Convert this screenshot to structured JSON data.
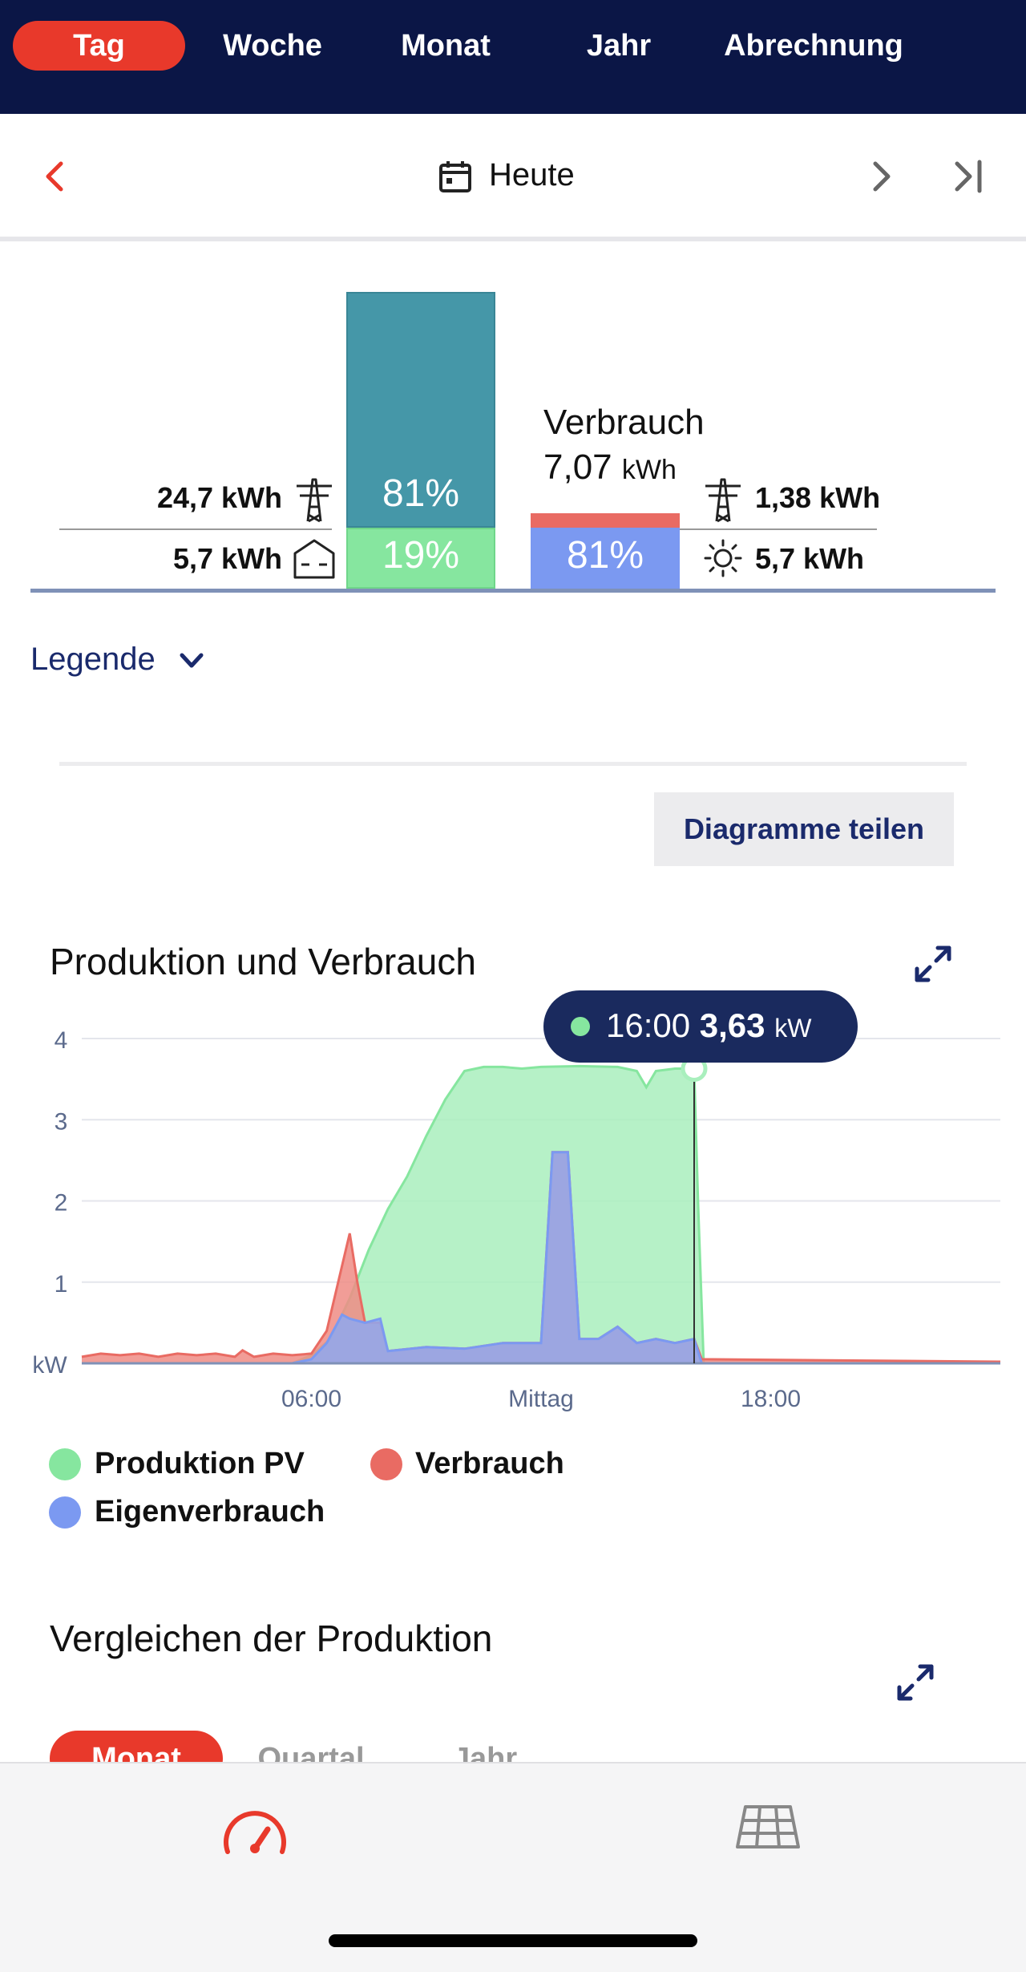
{
  "period_tabs": [
    {
      "label": "Tag",
      "active": true
    },
    {
      "label": "Woche",
      "active": false
    },
    {
      "label": "Monat",
      "active": false
    },
    {
      "label": "Jahr",
      "active": false
    },
    {
      "label": "Abrechnung",
      "active": false
    }
  ],
  "date_nav": {
    "label": "Heute",
    "icons": [
      "chevron-left-icon",
      "calendar-icon",
      "chevron-right-icon",
      "skip-to-end-icon"
    ]
  },
  "summary": {
    "production": {
      "grid_feed_value": "24,7 kWh",
      "self_use_value": "5,7 kWh",
      "grid_feed_pct": "81%",
      "self_use_pct": "19%",
      "grid_feed_fraction": 0.81,
      "self_use_fraction": 0.19
    },
    "consumption": {
      "title": "Verbrauch",
      "total_value": "7,07",
      "total_unit": "kWh",
      "grid_value": "1,38 kWh",
      "solar_value": "5,7 kWh",
      "solar_pct": "81%",
      "solar_fraction": 0.81
    },
    "colors": {
      "grid_feed": "#4597a8",
      "self_use": "#86e69f",
      "consumption_grid": "#e96b63",
      "consumption_solar": "#7b99f1"
    }
  },
  "legend_toggle": {
    "label": "Legende"
  },
  "share_button": {
    "label": "Diagramme teilen"
  },
  "chart_section": {
    "title": "Produktion und Verbrauch",
    "tooltip_time": "16:00",
    "tooltip_value": "3,63",
    "tooltip_unit": "kW"
  },
  "chart_data": {
    "type": "area",
    "title": "Produktion und Verbrauch",
    "xlabel": "",
    "ylabel": "kW",
    "x_range_hours": [
      0,
      24
    ],
    "ylim": [
      0,
      4
    ],
    "y_ticks": [
      "4",
      "3",
      "2",
      "1"
    ],
    "x_ticks": [
      {
        "hour": 6,
        "label": "06:00"
      },
      {
        "hour": 12,
        "label": "Mittag"
      },
      {
        "hour": 18,
        "label": "18:00"
      }
    ],
    "grid": true,
    "series": [
      {
        "name": "Produktion PV",
        "color": "#86e69f",
        "points": [
          [
            0,
            0
          ],
          [
            5.5,
            0
          ],
          [
            6,
            0.1
          ],
          [
            6.5,
            0.3
          ],
          [
            7,
            0.8
          ],
          [
            7.5,
            1.4
          ],
          [
            8,
            1.9
          ],
          [
            8.5,
            2.3
          ],
          [
            9,
            2.8
          ],
          [
            9.5,
            3.25
          ],
          [
            10,
            3.6
          ],
          [
            10.5,
            3.65
          ],
          [
            11,
            3.65
          ],
          [
            11.5,
            3.63
          ],
          [
            12,
            3.65
          ],
          [
            13,
            3.66
          ],
          [
            14,
            3.65
          ],
          [
            14.5,
            3.6
          ],
          [
            14.75,
            3.4
          ],
          [
            15,
            3.6
          ],
          [
            15.5,
            3.63
          ],
          [
            16,
            3.63
          ],
          [
            16.1,
            2.0
          ],
          [
            16.25,
            0
          ],
          [
            24,
            0
          ]
        ]
      },
      {
        "name": "Verbrauch",
        "color": "#e96b63",
        "points": [
          [
            0,
            0.08
          ],
          [
            0.5,
            0.12
          ],
          [
            1,
            0.1
          ],
          [
            1.5,
            0.12
          ],
          [
            2,
            0.08
          ],
          [
            2.5,
            0.12
          ],
          [
            3,
            0.1
          ],
          [
            3.5,
            0.12
          ],
          [
            4,
            0.08
          ],
          [
            4.2,
            0.16
          ],
          [
            4.5,
            0.08
          ],
          [
            5,
            0.12
          ],
          [
            5.5,
            0.1
          ],
          [
            6,
            0.12
          ],
          [
            6.4,
            0.4
          ],
          [
            6.8,
            1.2
          ],
          [
            7,
            1.6
          ],
          [
            7.2,
            1.0
          ],
          [
            7.4,
            0.5
          ],
          [
            7.8,
            0.5
          ],
          [
            8,
            0.15
          ],
          [
            9,
            0.2
          ],
          [
            10,
            0.18
          ],
          [
            11,
            0.25
          ],
          [
            12,
            0.25
          ],
          [
            12.3,
            2.6
          ],
          [
            12.7,
            2.6
          ],
          [
            13,
            0.3
          ],
          [
            13.5,
            0.3
          ],
          [
            14,
            0.45
          ],
          [
            14.5,
            0.25
          ],
          [
            15,
            0.3
          ],
          [
            15.5,
            0.25
          ],
          [
            16,
            0.3
          ],
          [
            16.2,
            0.05
          ],
          [
            24,
            0.02
          ]
        ]
      },
      {
        "name": "Eigenverbrauch",
        "color": "#7b99f1",
        "points": [
          [
            0,
            0
          ],
          [
            5.5,
            0
          ],
          [
            6,
            0.05
          ],
          [
            6.4,
            0.25
          ],
          [
            6.8,
            0.6
          ],
          [
            7,
            0.55
          ],
          [
            7.4,
            0.5
          ],
          [
            7.8,
            0.55
          ],
          [
            8,
            0.15
          ],
          [
            9,
            0.2
          ],
          [
            10,
            0.18
          ],
          [
            11,
            0.25
          ],
          [
            12,
            0.25
          ],
          [
            12.3,
            2.6
          ],
          [
            12.7,
            2.6
          ],
          [
            13,
            0.3
          ],
          [
            13.5,
            0.3
          ],
          [
            14,
            0.45
          ],
          [
            14.5,
            0.25
          ],
          [
            15,
            0.3
          ],
          [
            15.5,
            0.25
          ],
          [
            16,
            0.3
          ],
          [
            16.2,
            0
          ],
          [
            24,
            0
          ]
        ]
      }
    ],
    "legend": [
      {
        "label": "Produktion PV",
        "color": "#86e69f"
      },
      {
        "label": "Verbrauch",
        "color": "#e96b63"
      },
      {
        "label": "Eigenverbrauch",
        "color": "#7b99f1"
      }
    ],
    "legend_placement": "bottom",
    "annotation": {
      "hour": 16,
      "value": 3.63,
      "label": "16:00 3,63 kW"
    }
  },
  "compare_section": {
    "title": "Vergleichen der Produktion",
    "tabs": [
      {
        "label": "Monat",
        "active": true
      },
      {
        "label": "Quartal",
        "active": false
      },
      {
        "label": "Jahr",
        "active": false
      }
    ]
  },
  "bottom_nav": {
    "items": [
      "dashboard-gauge-icon",
      "solar-panel-icon"
    ]
  }
}
